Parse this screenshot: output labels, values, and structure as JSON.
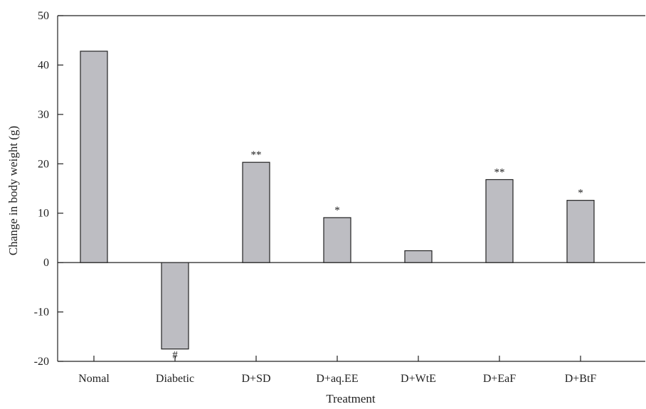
{
  "chart_data": {
    "type": "bar",
    "categories": [
      "Nomal",
      "Diabetic",
      "D+SD",
      "D+aq.EE",
      "D+WtE",
      "D+EaF",
      "D+BtF"
    ],
    "values": [
      42.8,
      -17.5,
      20.3,
      9.1,
      2.4,
      16.8,
      12.6
    ],
    "annotations": [
      "",
      "#",
      "**",
      "*",
      "",
      "**",
      "*"
    ],
    "title": "",
    "xlabel": "Treatment",
    "ylabel": "Change in body weight (g)",
    "ylim": [
      -20,
      50
    ],
    "yticks": [
      -20,
      -10,
      0,
      10,
      20,
      30,
      40,
      50
    ],
    "grid": false,
    "bar_color": "#bdbdc2",
    "bar_edge_color": "#222222",
    "axis_color": "#222222"
  }
}
